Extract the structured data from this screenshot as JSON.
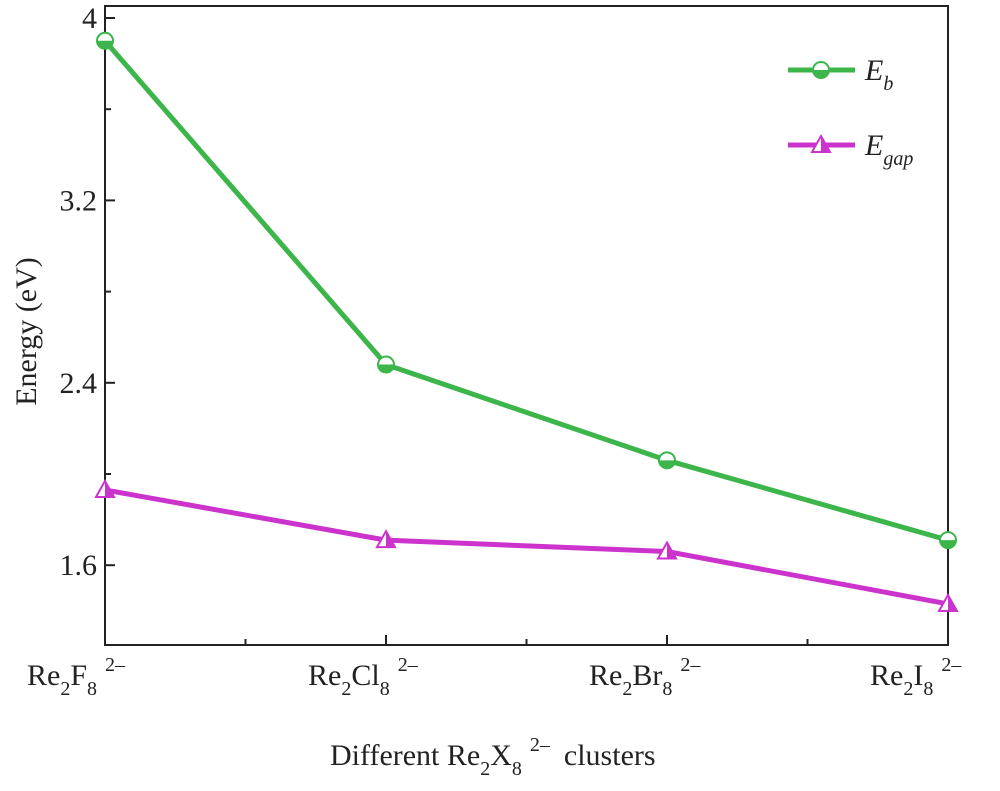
{
  "chart_data": {
    "type": "line",
    "categories": [
      [
        "Re",
        "2",
        "F",
        "8",
        "2–"
      ],
      [
        "Re",
        "2",
        "Cl",
        "8",
        "2–"
      ],
      [
        "Re",
        "2",
        "Br",
        "8",
        "2–"
      ],
      [
        "Re",
        "2",
        "I",
        "8",
        "2–"
      ]
    ],
    "xlabel": [
      "Different Re",
      "2",
      "X",
      "8",
      "2–",
      "clusters"
    ],
    "ylabel": "Energy (eV)",
    "series": [
      {
        "name": [
          "E",
          "b"
        ],
        "color": "#3cb54a",
        "marker": "circle",
        "values": [
          3.9,
          2.48,
          2.06,
          1.71
        ]
      },
      {
        "name": [
          "E",
          "gap"
        ],
        "color": "#cc33cc",
        "marker": "triangle",
        "values": [
          1.93,
          1.71,
          1.66,
          1.43
        ]
      }
    ],
    "ylim": [
      1.25,
      4.0
    ],
    "yticks": [
      1.6,
      2.4,
      3.2,
      4.0
    ],
    "yminorticks": [
      2.0,
      2.8,
      3.6
    ],
    "legend": "upper right"
  }
}
